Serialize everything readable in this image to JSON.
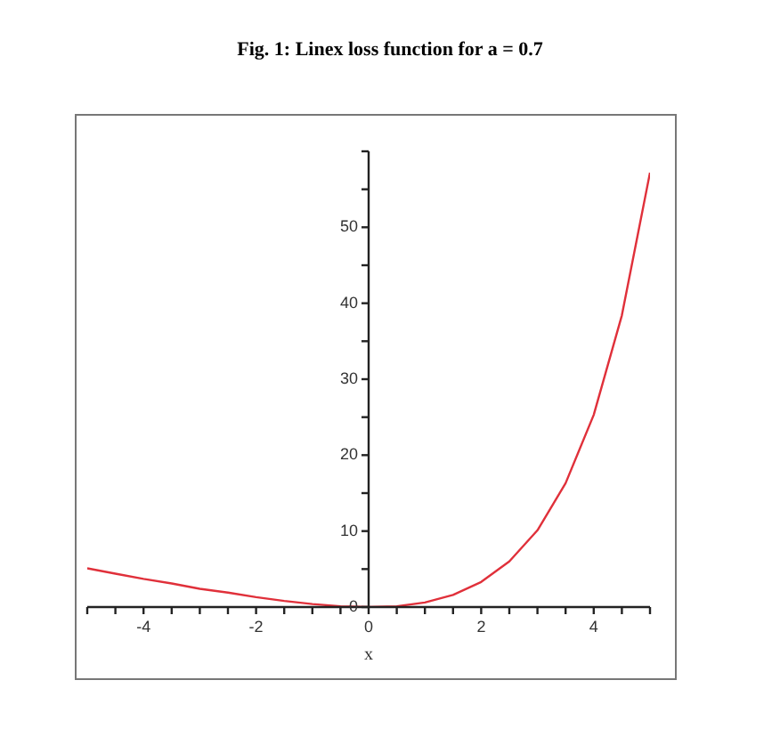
{
  "chart_data": {
    "type": "line",
    "title": "Fig. 1: Linex loss function for a = 0.7",
    "xlabel": "x",
    "x": [
      -5,
      -4.5,
      -4,
      -3.5,
      -3,
      -2.5,
      -2,
      -1.5,
      -1,
      -0.5,
      0,
      0.5,
      1,
      1.5,
      2,
      2.5,
      3,
      3.5,
      4,
      4.5,
      5
    ],
    "series": [
      {
        "color": "#e0303a",
        "values": [
          5.1,
          4.4,
          3.7,
          3.1,
          2.4,
          1.9,
          1.3,
          0.8,
          0.4,
          0.1,
          0,
          0.1,
          0.6,
          1.6,
          3.3,
          6.0,
          10.1,
          16.3,
          25.3,
          38.4,
          57.2
        ]
      }
    ],
    "xlim": [
      -5,
      5
    ],
    "ylim": [
      0,
      60
    ],
    "xticks": [
      {
        "value": -5,
        "label": null
      },
      {
        "value": -4.5,
        "label": null
      },
      -4,
      {
        "value": -3.5,
        "label": null
      },
      {
        "value": -3,
        "label": null
      },
      {
        "value": -2.5,
        "label": null
      },
      -2,
      {
        "value": -1.5,
        "label": null
      },
      {
        "value": -1,
        "label": null
      },
      {
        "value": -0.5,
        "label": null
      },
      0,
      {
        "value": 0.5,
        "label": null
      },
      {
        "value": 1,
        "label": null
      },
      {
        "value": 1.5,
        "label": null
      },
      2,
      {
        "value": 2.5,
        "label": null
      },
      {
        "value": 3,
        "label": null
      },
      {
        "value": 3.5,
        "label": null
      },
      4,
      {
        "value": 4.5,
        "label": null
      },
      {
        "value": 5,
        "label": null
      }
    ],
    "yticks": [
      0,
      {
        "value": 5,
        "label": null
      },
      10,
      {
        "value": 15,
        "label": null
      },
      20,
      {
        "value": 25,
        "label": null
      },
      30,
      {
        "value": 35,
        "label": null
      },
      40,
      {
        "value": 45,
        "label": null
      },
      50,
      {
        "value": 55,
        "label": null
      },
      {
        "value": 60,
        "label": null
      }
    ],
    "grid": false,
    "legend": false,
    "marker": "none",
    "line_style": "solid"
  }
}
